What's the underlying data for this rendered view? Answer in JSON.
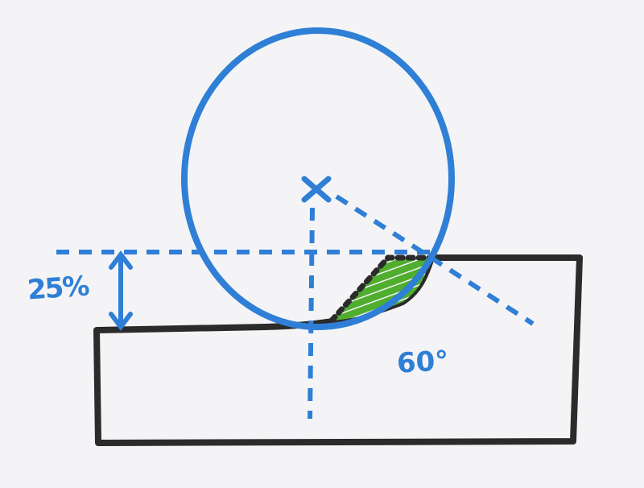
{
  "diagram": {
    "colors": {
      "paper": "#f4f4f6",
      "ink_blue": "#2f7fd6",
      "ink_black": "#2b2b2b",
      "fill_green": "#4fae2d"
    },
    "labels": {
      "depth": "25%",
      "angle": "60°"
    }
  }
}
